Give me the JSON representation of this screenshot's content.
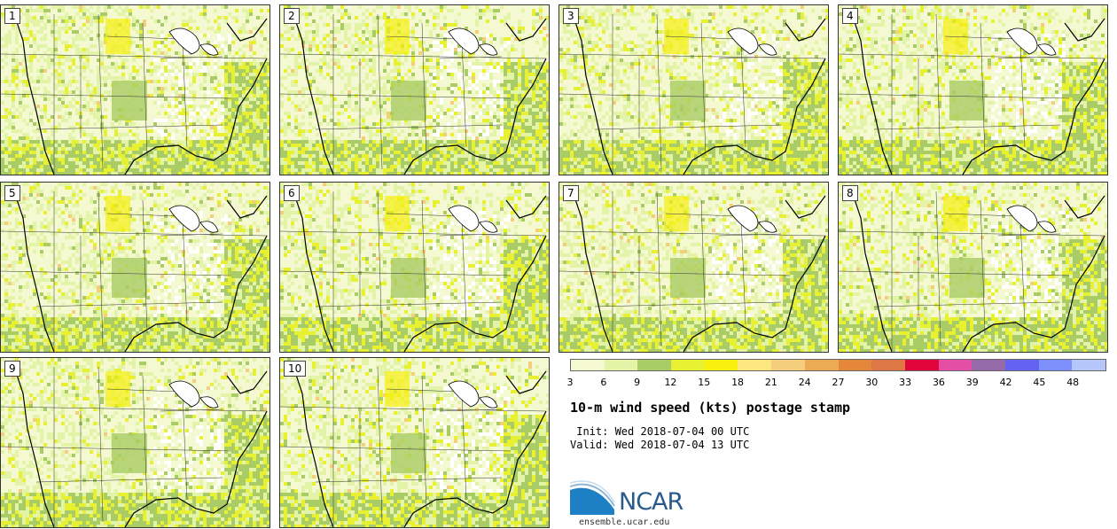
{
  "panels": [
    {
      "label": "1"
    },
    {
      "label": "2"
    },
    {
      "label": "3"
    },
    {
      "label": "4"
    },
    {
      "label": "5"
    },
    {
      "label": "6"
    },
    {
      "label": "7"
    },
    {
      "label": "8"
    },
    {
      "label": "9"
    },
    {
      "label": "10"
    }
  ],
  "colorbar": {
    "colors": [
      "#f4f9d2",
      "#e3f4a8",
      "#a9cc66",
      "#e8f032",
      "#f7ef0e",
      "#fde880",
      "#f4cd7d",
      "#ebab55",
      "#e5873a",
      "#dd7744",
      "#e0063d",
      "#e44ea5",
      "#966aa8",
      "#6462f1",
      "#7c8ffa",
      "#b5c7fa"
    ],
    "ticks": [
      "3",
      "6",
      "9",
      "12",
      "15",
      "18",
      "21",
      "24",
      "27",
      "30",
      "33",
      "36",
      "39",
      "42",
      "45",
      "48"
    ]
  },
  "title": "10-m wind speed (kts) postage stamp",
  "init": " Init: Wed 2018-07-04 00 UTC",
  "valid": "Valid: Wed 2018-07-04 13 UTC",
  "logo": {
    "name": "NCAR",
    "url": "ensemble.ucar.edu"
  }
}
